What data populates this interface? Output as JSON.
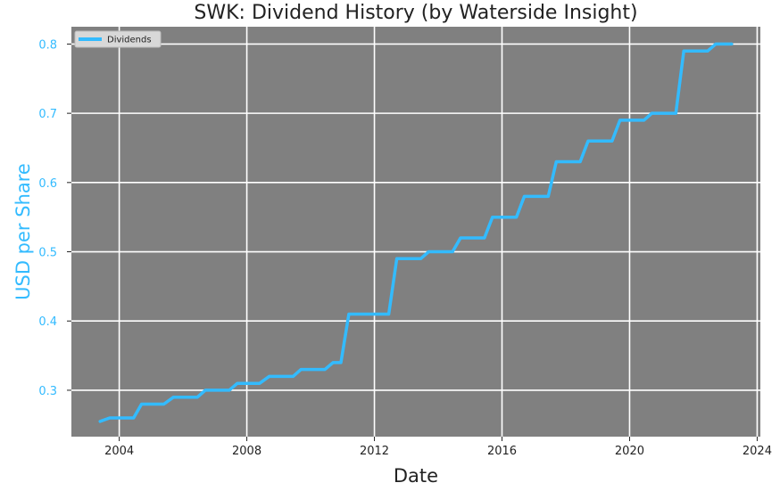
{
  "chart_data": {
    "type": "line",
    "title": "SWK: Dividend History (by Waterside Insight)",
    "xlabel": "Date",
    "ylabel": "USD per Share",
    "x_ticks": [
      "2004",
      "2008",
      "2012",
      "2016",
      "2020",
      "2024"
    ],
    "y_ticks": [
      "0.3",
      "0.4",
      "0.5",
      "0.6",
      "0.7",
      "0.8"
    ],
    "xlim": [
      2002.5,
      2024.1
    ],
    "ylim": [
      0.233,
      0.825
    ],
    "grid": true,
    "legend_position": "top-left",
    "series": [
      {
        "name": "Dividends",
        "color": "#33bbff",
        "x": [
          2003.4,
          2003.7,
          2004.45,
          2004.7,
          2005.4,
          2005.7,
          2006.45,
          2006.7,
          2007.45,
          2007.7,
          2008.4,
          2008.7,
          2009.45,
          2009.7,
          2010.45,
          2010.7,
          2010.95,
          2011.2,
          2012.45,
          2012.7,
          2013.45,
          2013.7,
          2014.45,
          2014.7,
          2015.45,
          2015.7,
          2016.45,
          2016.7,
          2017.45,
          2017.7,
          2018.45,
          2018.7,
          2019.45,
          2019.7,
          2020.45,
          2020.7,
          2021.45,
          2021.7,
          2022.45,
          2022.7,
          2023.2
        ],
        "y": [
          0.255,
          0.26,
          0.26,
          0.28,
          0.28,
          0.29,
          0.29,
          0.3,
          0.3,
          0.31,
          0.31,
          0.32,
          0.32,
          0.33,
          0.33,
          0.34,
          0.34,
          0.41,
          0.41,
          0.49,
          0.49,
          0.5,
          0.5,
          0.52,
          0.52,
          0.55,
          0.55,
          0.58,
          0.58,
          0.63,
          0.63,
          0.66,
          0.66,
          0.69,
          0.69,
          0.7,
          0.7,
          0.79,
          0.79,
          0.8,
          0.8
        ]
      }
    ]
  },
  "colors": {
    "plot_background": "#808080",
    "grid": "#ffffff",
    "y_axis_text": "#33bbff",
    "x_axis_text": "#222222"
  }
}
